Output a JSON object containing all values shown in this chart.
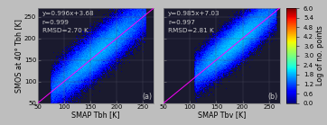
{
  "panel_a": {
    "label": "(a)",
    "xlabel": "SMAP Tbh [K]",
    "ylabel": "SMOS at 40° Tbh [K]",
    "equation": "y=0.996x+3.68",
    "r": "r=0.999",
    "rmsd": "RMSD=2.70 K",
    "xlim": [
      50,
      270
    ],
    "ylim": [
      50,
      270
    ],
    "xticks": [
      50,
      100,
      150,
      200,
      250
    ],
    "yticks": [
      50,
      100,
      150,
      200,
      250
    ],
    "slope": 0.996,
    "intercept": 3.68,
    "x_min": 75,
    "x_max": 255,
    "x_center": 160,
    "spread_along": 55,
    "spread_perp": 22,
    "n_points": 120000
  },
  "panel_b": {
    "label": "(b)",
    "xlabel": "SMAP Tbv [K]",
    "ylabel": "SMOS at 40° Tbv [K]",
    "equation": "y=0.985x+7.03",
    "r": "r=0.997",
    "rmsd": "RMSD=2.81 K",
    "xlim": [
      50,
      270
    ],
    "ylim": [
      50,
      270
    ],
    "xticks": [
      50,
      100,
      150,
      200,
      250
    ],
    "yticks": [
      50,
      100,
      150,
      200,
      250
    ],
    "slope": 0.985,
    "intercept": 7.03,
    "x_min": 110,
    "x_max": 265,
    "x_center": 185,
    "spread_along": 45,
    "spread_perp": 20,
    "n_points": 120000
  },
  "colorbar": {
    "label": "Log of no. points",
    "vmin": 0.0,
    "vmax": 6.0,
    "ticks": [
      0.0,
      0.6,
      1.2,
      1.8,
      2.4,
      3.0,
      3.6,
      4.2,
      4.8,
      5.4,
      6.0
    ]
  },
  "background_color": "#bebebe",
  "axes_bg_color": "#1a1a2e",
  "text_color": "#000000",
  "text_fontsize": 5.2,
  "label_fontsize": 5.8,
  "tick_fontsize": 5.0,
  "annotation_color": "#cccccc"
}
